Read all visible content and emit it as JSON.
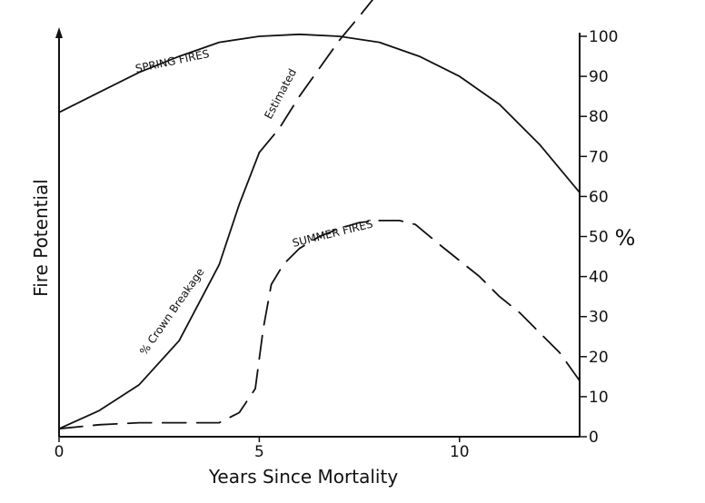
{
  "chart_data": {
    "type": "line",
    "xlabel": "Years Since Mortality",
    "ylabel_left": "Fire Potential",
    "ylabel_right": "%",
    "x_ticks": [
      0,
      5,
      10
    ],
    "xlim": [
      0,
      13
    ],
    "right_ylim": [
      0,
      100
    ],
    "right_y_ticks": [
      0,
      10,
      20,
      30,
      40,
      50,
      60,
      70,
      80,
      90,
      100
    ],
    "grid": false,
    "legend": "none",
    "series": [
      {
        "name": "SPRING FIRES",
        "style": "solid",
        "points": [
          [
            0,
            81
          ],
          [
            1,
            86
          ],
          [
            2,
            91
          ],
          [
            3,
            95
          ],
          [
            4,
            98.5
          ],
          [
            5,
            100
          ],
          [
            6,
            100.5
          ],
          [
            7,
            100
          ],
          [
            8,
            98.5
          ],
          [
            9,
            95
          ],
          [
            10,
            90
          ],
          [
            11,
            83
          ],
          [
            12,
            73
          ],
          [
            13,
            61
          ]
        ]
      },
      {
        "name": "% Crown Breakage",
        "style": "solid",
        "points": [
          [
            0,
            2
          ],
          [
            1,
            6.5
          ],
          [
            2,
            13
          ],
          [
            3,
            24
          ],
          [
            4,
            43
          ],
          [
            4.5,
            58
          ],
          [
            5,
            71
          ]
        ]
      },
      {
        "name": "Estimated",
        "style": "dashed",
        "points": [
          [
            5,
            71
          ],
          [
            5.5,
            77
          ],
          [
            6,
            85
          ],
          [
            6.5,
            92
          ],
          [
            7,
            99
          ],
          [
            7.5,
            105
          ],
          [
            7.9,
            110
          ]
        ]
      },
      {
        "name": "SUMMER FIRES",
        "style": "dashed",
        "points": [
          [
            0,
            2
          ],
          [
            1,
            3
          ],
          [
            2,
            3.5
          ],
          [
            3,
            3.5
          ],
          [
            4,
            3.5
          ],
          [
            4.5,
            6
          ],
          [
            4.9,
            12
          ],
          [
            5.1,
            27
          ],
          [
            5.3,
            38
          ],
          [
            5.6,
            43
          ],
          [
            6,
            47
          ],
          [
            6.5,
            50
          ],
          [
            7,
            52
          ],
          [
            7.5,
            53.5
          ],
          [
            8,
            54
          ],
          [
            8.5,
            54
          ],
          [
            8.9,
            53
          ],
          [
            9.5,
            48
          ],
          [
            10,
            44
          ],
          [
            10.5,
            40
          ],
          [
            11,
            35
          ],
          [
            11.5,
            31
          ],
          [
            12,
            26
          ],
          [
            12.5,
            21
          ],
          [
            13,
            14
          ]
        ]
      }
    ]
  }
}
